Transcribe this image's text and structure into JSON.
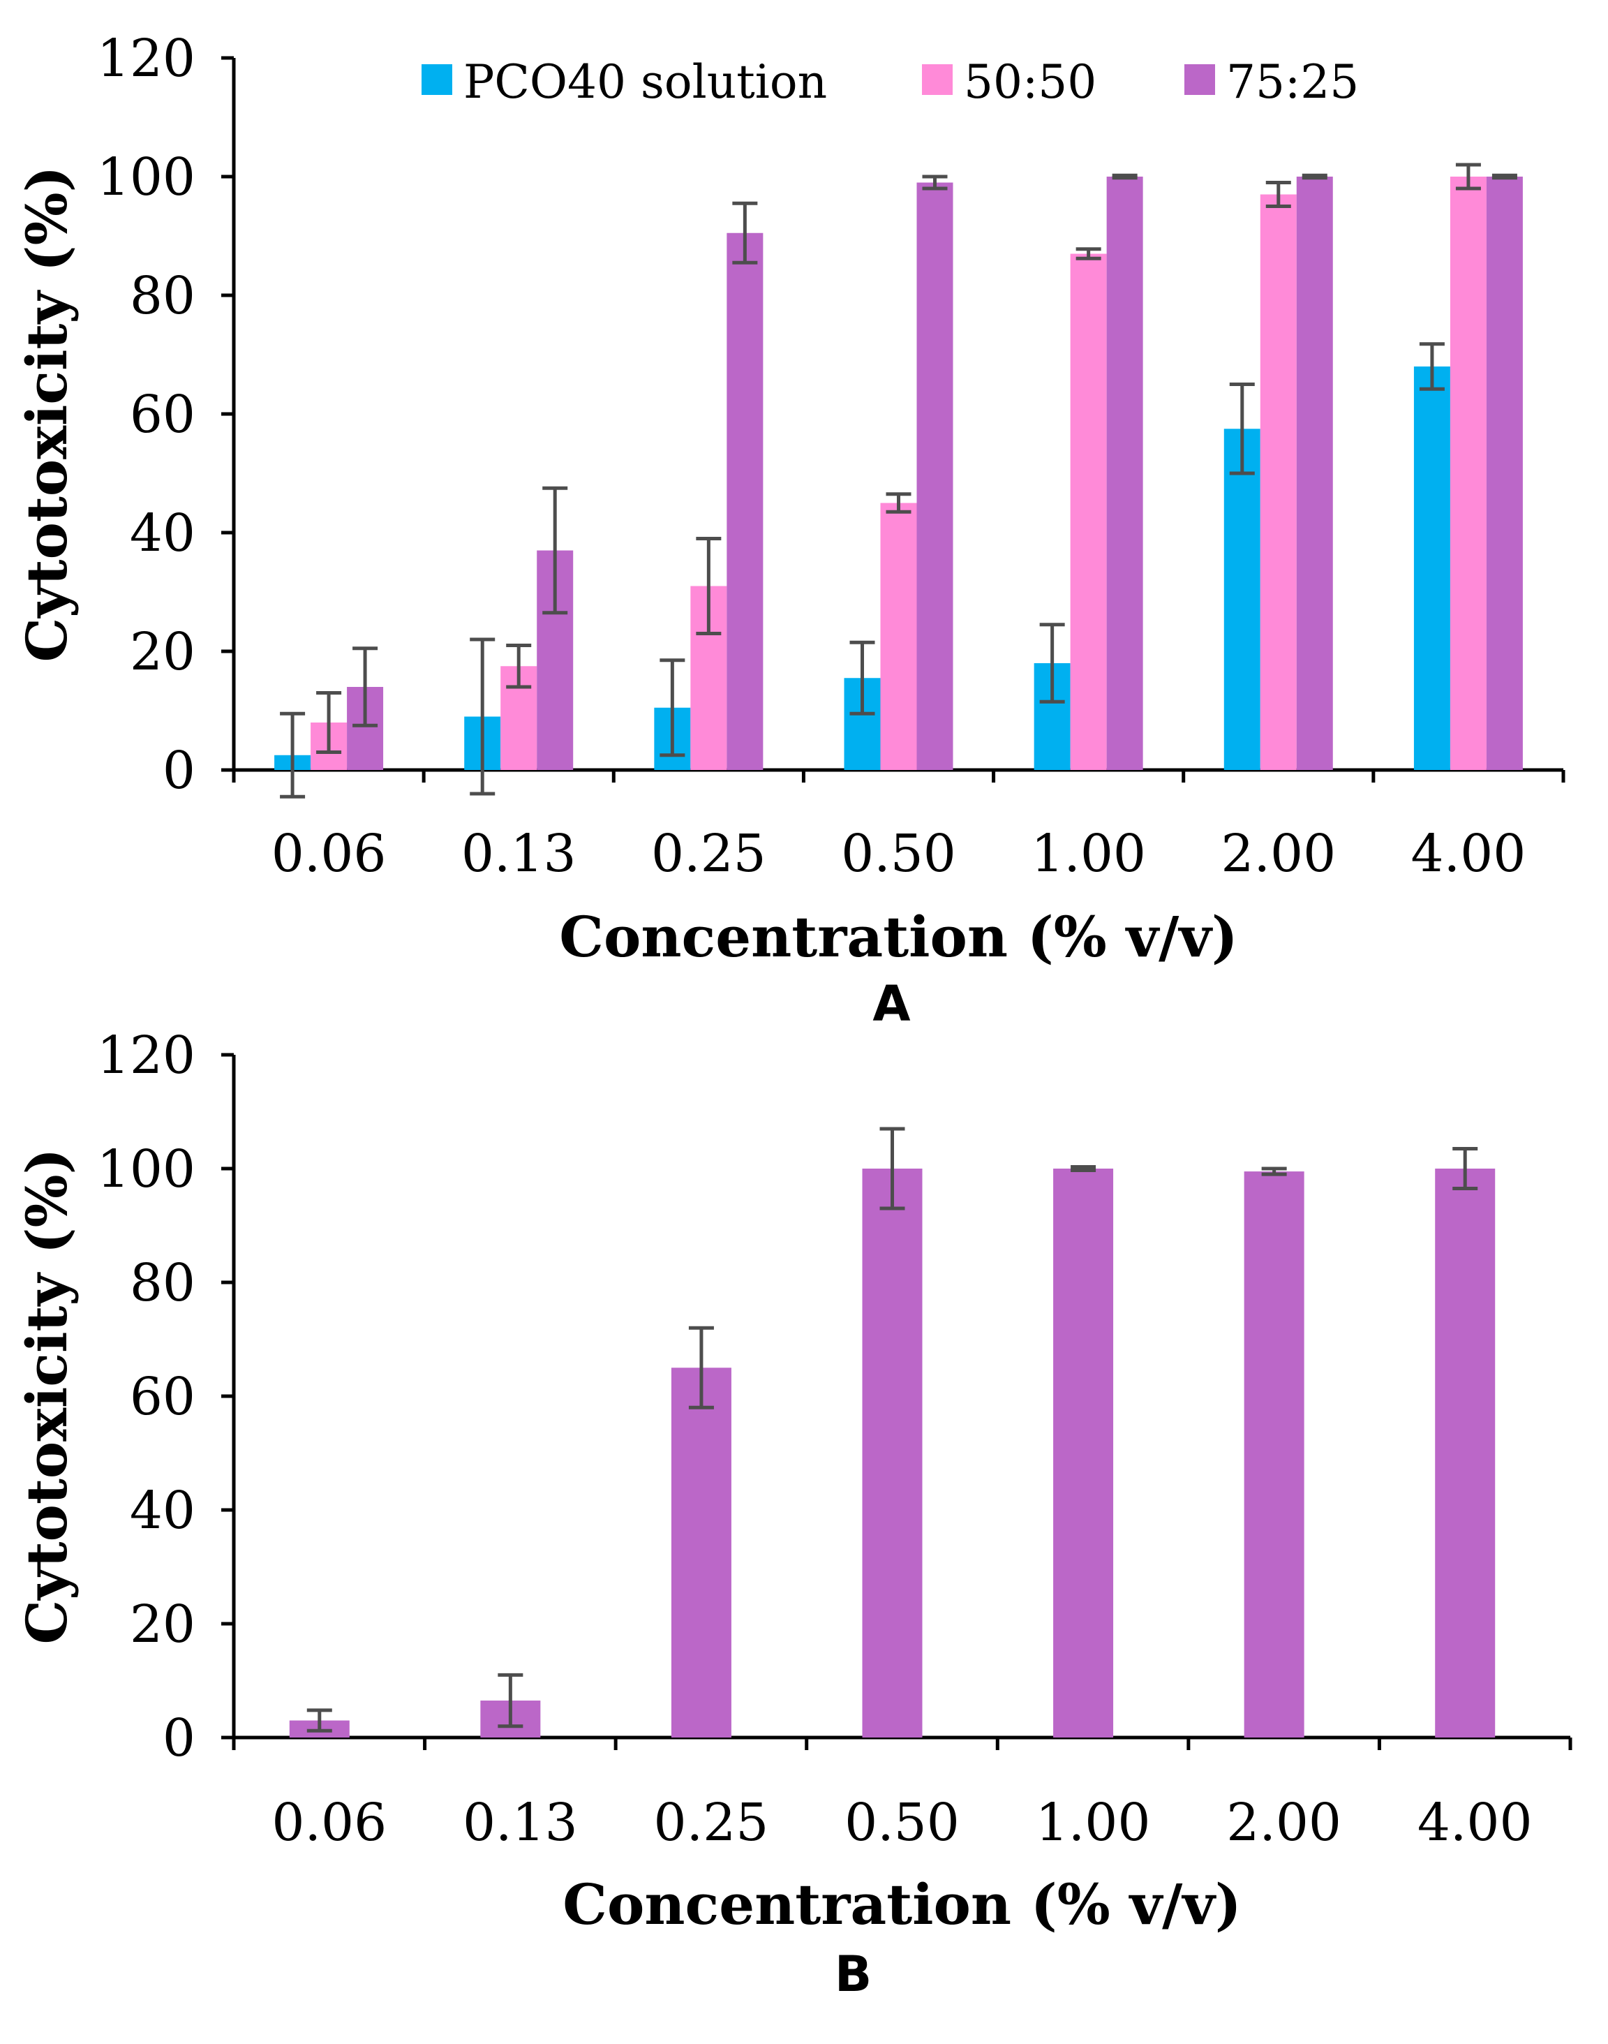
{
  "chart_data": [
    {
      "type": "bar",
      "panel": "A",
      "categories": [
        "0.06",
        "0.13",
        "0.25",
        "0.50",
        "1.00",
        "2.00",
        "4.00"
      ],
      "series": [
        {
          "name": "PCO40 solution",
          "color": "#00b0f0",
          "values": [
            2.5,
            9,
            10.5,
            15.5,
            18,
            57.5,
            68
          ],
          "errors": [
            7,
            13,
            8,
            6,
            6.5,
            7.5,
            3.8
          ]
        },
        {
          "name": "50:50",
          "color": "#ff8ad8",
          "values": [
            8,
            17.5,
            31,
            45,
            87,
            97,
            100
          ],
          "errors": [
            5,
            3.5,
            8,
            1.5,
            0.8,
            2,
            2
          ]
        },
        {
          "name": "75:25",
          "color": "#bb67c8",
          "values": [
            14,
            37,
            90.5,
            99,
            100,
            100,
            100
          ],
          "errors": [
            6.5,
            10.5,
            5,
            1,
            0.2,
            0.2,
            0.2
          ]
        }
      ],
      "xlabel": "Concentration (% v/v)",
      "ylabel": "Cytotoxicity (%)",
      "ylim": [
        0,
        120
      ],
      "yticks": [
        "0",
        "20",
        "40",
        "60",
        "80",
        "100",
        "120"
      ],
      "legend": "top"
    },
    {
      "type": "bar",
      "panel": "B",
      "categories": [
        "0.06",
        "0.13",
        "0.25",
        "0.50",
        "1.00",
        "2.00",
        "4.00"
      ],
      "series": [
        {
          "name": "75:25",
          "color": "#bb67c8",
          "values": [
            3,
            6.5,
            65,
            100,
            100,
            99.5,
            100
          ],
          "errors": [
            1.8,
            4.5,
            7,
            7,
            0.3,
            0.5,
            3.5
          ]
        }
      ],
      "xlabel": "Concentration (% v/v)",
      "ylabel": "Cytotoxicity (%)",
      "ylim": [
        0,
        120
      ],
      "yticks": [
        "0",
        "20",
        "40",
        "60",
        "80",
        "100",
        "120"
      ]
    }
  ]
}
